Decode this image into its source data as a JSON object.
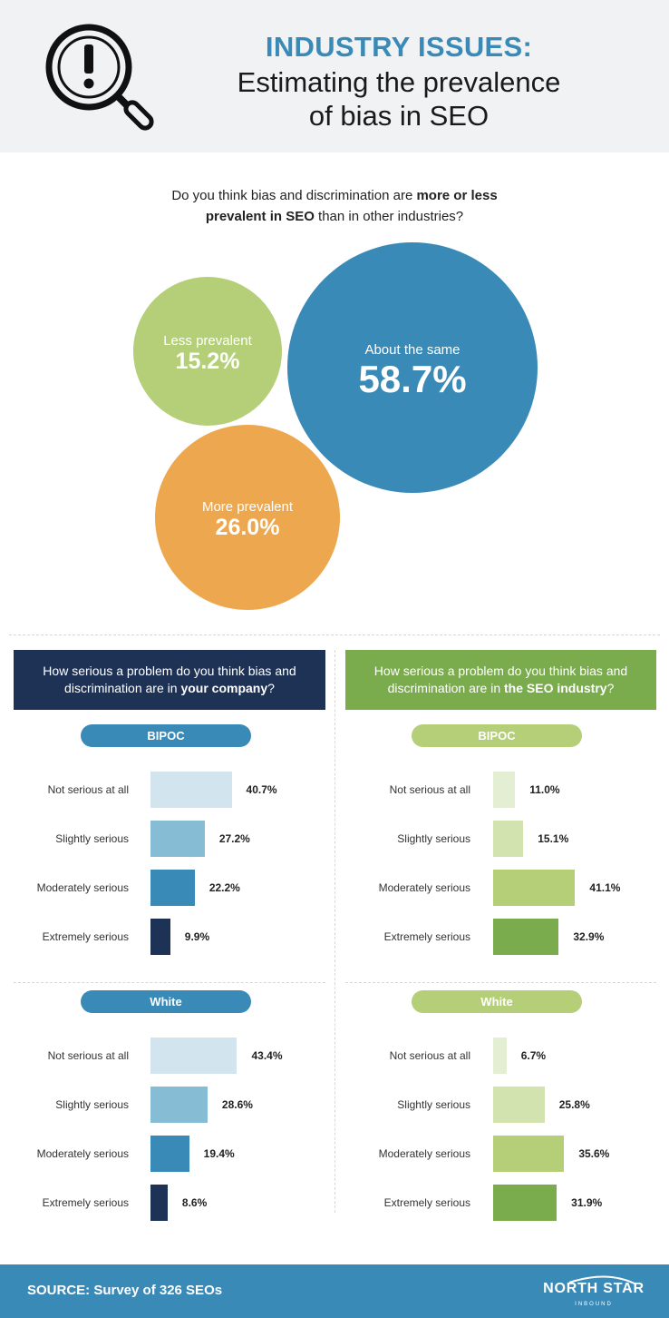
{
  "header": {
    "title": "INDUSTRY ISSUES:",
    "subtitle_line1": "Estimating the prevalence",
    "subtitle_line2": "of bias in SEO",
    "icon": "magnifier-exclamation-icon"
  },
  "question": {
    "part1": "Do you think bias and discrimination are ",
    "bold": "more or less prevalent in SEO",
    "part2": " than in other industries?"
  },
  "colors": {
    "blue": "#3a8ab8",
    "navy": "#1e3256",
    "green": "#7aab4c",
    "light_green": "#b4cf78",
    "orange": "#eda74e"
  },
  "chart_data": [
    {
      "type": "bubble",
      "categories": [
        "About the same",
        "More prevalent",
        "Less prevalent"
      ],
      "values": [
        "58.7%",
        "26.0%",
        "15.2%"
      ],
      "colors": [
        "#3a8ab8",
        "#eda74e",
        "#b4cf78"
      ]
    },
    {
      "type": "bar",
      "panel": "left",
      "heading_prefix": "How serious a problem do you think bias and discrimination are in ",
      "heading_bold": "your company",
      "heading_suffix": "?",
      "groups": [
        {
          "name": "BIPOC",
          "categories": [
            "Not serious at all",
            "Slightly serious",
            "Moderately serious",
            "Extremely serious"
          ],
          "values": [
            40.7,
            27.2,
            22.2,
            9.9
          ],
          "labels": [
            "40.7%",
            "27.2%",
            "22.2%",
            "9.9%"
          ],
          "colors": [
            "#d2e5ef",
            "#87bcd5",
            "#3a8ab8",
            "#1e3256"
          ]
        },
        {
          "name": "White",
          "categories": [
            "Not serious at all",
            "Slightly serious",
            "Moderately serious",
            "Extremely serious"
          ],
          "values": [
            43.4,
            28.6,
            19.4,
            8.6
          ],
          "labels": [
            "43.4%",
            "28.6%",
            "19.4%",
            "8.6%"
          ],
          "colors": [
            "#d2e5ef",
            "#87bcd5",
            "#3a8ab8",
            "#1e3256"
          ]
        }
      ]
    },
    {
      "type": "bar",
      "panel": "right",
      "heading_prefix": "How serious a problem do you think bias and discrimination are in ",
      "heading_bold": "the SEO industry",
      "heading_suffix": "?",
      "groups": [
        {
          "name": "BIPOC",
          "categories": [
            "Not serious at all",
            "Slightly serious",
            "Moderately serious",
            "Extremely serious"
          ],
          "values": [
            11.0,
            15.1,
            41.1,
            32.9
          ],
          "labels": [
            "11.0%",
            "15.1%",
            "41.1%",
            "32.9%"
          ],
          "colors": [
            "#e4eed3",
            "#d2e3b0",
            "#b4cf78",
            "#7aab4c"
          ]
        },
        {
          "name": "White",
          "categories": [
            "Not serious at all",
            "Slightly serious",
            "Moderately serious",
            "Extremely serious"
          ],
          "values": [
            6.7,
            25.8,
            35.6,
            31.9
          ],
          "labels": [
            "6.7%",
            "25.8%",
            "35.6%",
            "31.9%"
          ],
          "colors": [
            "#e4eed3",
            "#d2e3b0",
            "#b4cf78",
            "#7aab4c"
          ]
        }
      ]
    }
  ],
  "footer": {
    "source": "SOURCE: Survey of 326 SEOs",
    "logo_text": "NORTH STAR",
    "logo_sub": "INBOUND"
  }
}
